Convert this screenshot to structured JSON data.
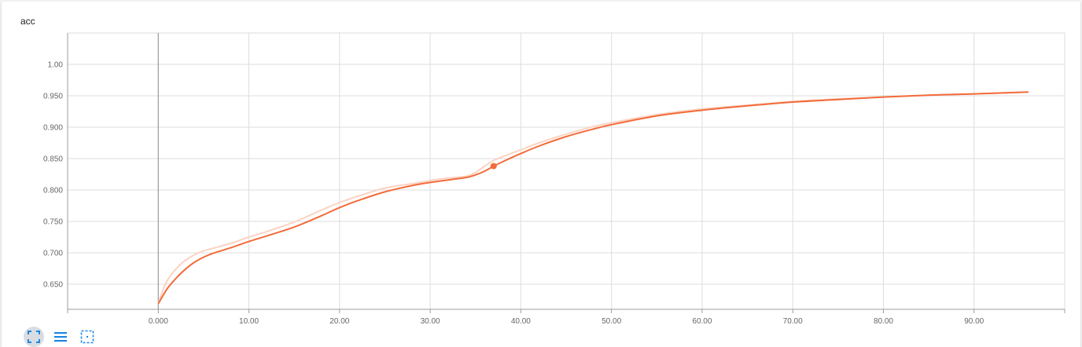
{
  "chart_title": "acc",
  "toolbar": {
    "buttons": [
      {
        "icon": "fit-domain-icon",
        "active": true
      },
      {
        "icon": "toggle-data-icon",
        "active": false
      },
      {
        "icon": "select-zoom-icon",
        "active": false
      }
    ]
  },
  "colors": {
    "series": "#f26b3a",
    "raw_series": "#fbd3c2",
    "grid": "#dddddd",
    "axis": "#9e9e9e",
    "zero_line": "#999999",
    "icon": "#1e88e5"
  },
  "chart_data": {
    "type": "line",
    "title": "",
    "xlabel": "",
    "ylabel": "",
    "xlim": [
      -10,
      100
    ],
    "ylim": [
      0.61,
      1.05
    ],
    "grid": true,
    "x_ticks": [
      0,
      10,
      20,
      30,
      40,
      50,
      60,
      70,
      80,
      90
    ],
    "x_tick_labels": [
      "0.000",
      "10.00",
      "20.00",
      "30.00",
      "40.00",
      "50.00",
      "60.00",
      "70.00",
      "80.00",
      "90.00"
    ],
    "y_ticks": [
      0.65,
      0.7,
      0.75,
      0.8,
      0.85,
      0.9,
      0.95,
      1.0
    ],
    "y_tick_labels": [
      "0.650",
      "0.700",
      "0.750",
      "0.800",
      "0.850",
      "0.900",
      "0.950",
      "1.00"
    ],
    "series": [
      {
        "role": "smoothed",
        "x": [
          0,
          1,
          2,
          3,
          4,
          5,
          6,
          8,
          10,
          12,
          15,
          18,
          20,
          22,
          25,
          28,
          30,
          32,
          34,
          35,
          36,
          37,
          38,
          40,
          42,
          45,
          48,
          50,
          55,
          60,
          65,
          70,
          75,
          80,
          85,
          90,
          96
        ],
        "y": [
          0.619,
          0.643,
          0.66,
          0.674,
          0.685,
          0.693,
          0.699,
          0.708,
          0.718,
          0.727,
          0.741,
          0.759,
          0.772,
          0.783,
          0.797,
          0.807,
          0.812,
          0.816,
          0.82,
          0.824,
          0.83,
          0.838,
          0.845,
          0.858,
          0.87,
          0.885,
          0.897,
          0.904,
          0.918,
          0.927,
          0.934,
          0.94,
          0.944,
          0.948,
          0.951,
          0.953,
          0.956
        ]
      },
      {
        "role": "raw",
        "x": [
          0,
          0.5,
          1,
          2,
          3,
          4,
          5,
          6,
          8,
          10,
          12,
          15,
          18,
          20,
          22,
          25,
          28,
          30,
          32,
          34,
          35,
          36,
          37,
          38,
          40,
          42,
          45,
          48,
          50,
          55,
          60,
          65,
          70,
          75,
          80,
          85,
          90,
          96
        ],
        "y": [
          0.619,
          0.64,
          0.656,
          0.675,
          0.688,
          0.697,
          0.703,
          0.707,
          0.715,
          0.725,
          0.734,
          0.749,
          0.768,
          0.78,
          0.79,
          0.803,
          0.81,
          0.815,
          0.819,
          0.822,
          0.828,
          0.838,
          0.847,
          0.853,
          0.864,
          0.875,
          0.889,
          0.901,
          0.907,
          0.92,
          0.929,
          0.935,
          0.941,
          0.945,
          0.948,
          0.951,
          0.953,
          0.956
        ]
      }
    ],
    "highlight_point": {
      "x": 37,
      "y": 0.838
    }
  }
}
